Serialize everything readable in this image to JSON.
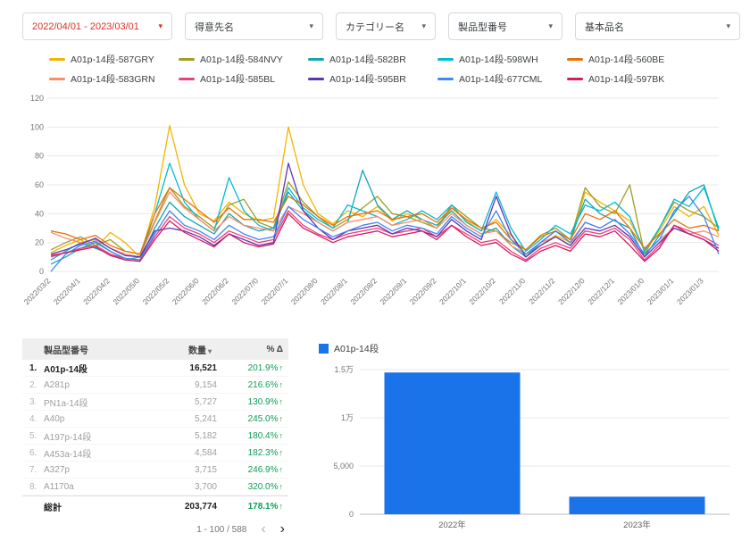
{
  "filters": {
    "date_range": {
      "label": "2022/04/01 - 2023/03/01",
      "color": "#d93025"
    },
    "items": [
      {
        "label": "得意先名"
      },
      {
        "label": "カテゴリー名"
      },
      {
        "label": "製品型番号"
      },
      {
        "label": "基本品名"
      }
    ]
  },
  "icons": {
    "caret_down": "▾",
    "sort_desc": "▾",
    "arrow_up": "↑",
    "chevron_left": "‹",
    "chevron_right": "›"
  },
  "chart_data": [
    {
      "type": "line",
      "title": "",
      "ylim": [
        0,
        120
      ],
      "yticks": [
        0,
        20,
        40,
        60,
        80,
        100,
        120
      ],
      "label_every": 2,
      "x_labels": [
        "2022/03/2",
        "2022/04/1",
        "2022/04/2",
        "2022/05/0",
        "2022/05/2",
        "2022/06/0",
        "2022/06/2",
        "2022/07/0",
        "2022/07/1",
        "2022/08/0",
        "2022/08/1",
        "2022/08/2",
        "2022/09/1",
        "2022/09/2",
        "2022/10/1",
        "2022/10/2",
        "2022/11/0",
        "2022/11/2",
        "2022/12/0",
        "2022/12/1",
        "2023/01/0",
        "2023/01/1",
        "2023/01/3"
      ],
      "series": [
        {
          "name": "A01p-14段-587GRY",
          "color": "#F4B400",
          "values": [
            13,
            18,
            22,
            16,
            27,
            20,
            10,
            45,
            101,
            60,
            40,
            35,
            48,
            40,
            35,
            37,
            100,
            60,
            40,
            33,
            42,
            38,
            45,
            35,
            40,
            36,
            30,
            44,
            35,
            28,
            36,
            25,
            12,
            18,
            25,
            20,
            55,
            48,
            42,
            35,
            15,
            28,
            45,
            38,
            45,
            25
          ]
        },
        {
          "name": "A01p-14段-584NVY",
          "color": "#9E9D24",
          "values": [
            15,
            20,
            24,
            18,
            22,
            14,
            12,
            35,
            58,
            45,
            38,
            30,
            46,
            50,
            34,
            30,
            62,
            48,
            38,
            30,
            36,
            44,
            52,
            40,
            38,
            34,
            30,
            46,
            38,
            30,
            28,
            20,
            15,
            25,
            30,
            22,
            58,
            45,
            40,
            60,
            12,
            30,
            48,
            42,
            38,
            30
          ]
        },
        {
          "name": "A01p-14段-582BR",
          "color": "#12A5B0",
          "values": [
            5,
            10,
            16,
            20,
            14,
            9,
            8,
            30,
            48,
            38,
            32,
            26,
            40,
            32,
            28,
            30,
            55,
            42,
            34,
            28,
            34,
            70,
            46,
            36,
            42,
            36,
            32,
            42,
            32,
            26,
            30,
            18,
            10,
            20,
            28,
            22,
            50,
            40,
            35,
            30,
            10,
            25,
            40,
            55,
            60,
            28
          ]
        },
        {
          "name": "A01p-14段-598WH",
          "color": "#00BCD4",
          "values": [
            8,
            14,
            20,
            16,
            12,
            8,
            10,
            40,
            75,
            48,
            36,
            28,
            65,
            42,
            32,
            28,
            58,
            44,
            36,
            30,
            46,
            42,
            38,
            32,
            36,
            42,
            36,
            46,
            34,
            28,
            55,
            30,
            14,
            22,
            32,
            26,
            46,
            42,
            48,
            38,
            14,
            30,
            50,
            45,
            58,
            30
          ]
        },
        {
          "name": "A01p-14段-560BE",
          "color": "#E8710A",
          "values": [
            28,
            26,
            22,
            25,
            18,
            14,
            12,
            40,
            58,
            50,
            42,
            34,
            44,
            36,
            36,
            34,
            52,
            46,
            38,
            32,
            38,
            40,
            42,
            36,
            38,
            40,
            34,
            44,
            36,
            30,
            34,
            22,
            15,
            24,
            28,
            22,
            40,
            36,
            42,
            30,
            16,
            26,
            36,
            30,
            32,
            28
          ]
        },
        {
          "name": "A01p-14段-583GRN",
          "color": "#FF8A65",
          "values": [
            27,
            23,
            20,
            22,
            16,
            12,
            10,
            34,
            55,
            44,
            36,
            28,
            38,
            32,
            30,
            28,
            45,
            40,
            34,
            28,
            34,
            36,
            38,
            32,
            34,
            36,
            30,
            40,
            32,
            26,
            28,
            18,
            12,
            20,
            24,
            18,
            34,
            30,
            36,
            26,
            12,
            22,
            30,
            26,
            28,
            24
          ]
        },
        {
          "name": "A01p-14段-585BL",
          "color": "#EC407A",
          "values": [
            10,
            13,
            16,
            18,
            12,
            9,
            8,
            24,
            38,
            30,
            26,
            20,
            28,
            24,
            20,
            22,
            42,
            32,
            26,
            22,
            26,
            28,
            30,
            26,
            28,
            30,
            24,
            32,
            26,
            20,
            22,
            14,
            8,
            16,
            20,
            16,
            28,
            26,
            30,
            22,
            8,
            18,
            32,
            28,
            24,
            18
          ]
        },
        {
          "name": "A01p-14段-595BR",
          "color": "#5E35B1",
          "values": [
            12,
            15,
            19,
            23,
            16,
            11,
            10,
            28,
            30,
            28,
            24,
            18,
            26,
            22,
            18,
            20,
            75,
            42,
            30,
            22,
            28,
            30,
            32,
            26,
            30,
            28,
            24,
            36,
            28,
            22,
            52,
            26,
            10,
            18,
            24,
            18,
            30,
            28,
            32,
            24,
            10,
            20,
            30,
            26,
            22,
            16
          ]
        },
        {
          "name": "A01p-14段-677CML",
          "color": "#4285F4",
          "values": [
            0,
            12,
            18,
            21,
            14,
            9,
            8,
            26,
            42,
            32,
            28,
            22,
            32,
            26,
            22,
            24,
            45,
            36,
            30,
            24,
            28,
            32,
            34,
            28,
            32,
            30,
            26,
            38,
            30,
            24,
            42,
            22,
            12,
            20,
            28,
            20,
            34,
            30,
            36,
            26,
            12,
            22,
            42,
            52,
            38,
            12
          ]
        },
        {
          "name": "A01p-14段-597BK",
          "color": "#D81B60",
          "values": [
            11,
            13,
            15,
            17,
            11,
            8,
            7,
            22,
            35,
            27,
            22,
            17,
            26,
            20,
            17,
            19,
            40,
            30,
            25,
            20,
            24,
            26,
            28,
            24,
            26,
            28,
            22,
            32,
            24,
            18,
            20,
            12,
            7,
            14,
            18,
            14,
            26,
            24,
            28,
            18,
            7,
            16,
            32,
            26,
            22,
            14
          ]
        }
      ]
    },
    {
      "type": "bar",
      "legend": "A01p-14段",
      "bar_color": "#1A73E8",
      "categories": [
        "2022年",
        "2023年"
      ],
      "values": [
        14700,
        1821
      ],
      "ylim": [
        0,
        15000
      ],
      "yticks": [
        {
          "v": 0,
          "label": "0"
        },
        {
          "v": 5000,
          "label": "5,000"
        },
        {
          "v": 10000,
          "label": "1万"
        },
        {
          "v": 15000,
          "label": "1.5万"
        }
      ]
    }
  ],
  "table": {
    "col_product": "製品型番号",
    "col_qty": "数量",
    "col_delta": "% Δ",
    "rows": [
      {
        "rank": "1.",
        "name": "A01p-14段",
        "qty": "16,521",
        "delta": "201.9%"
      },
      {
        "rank": "2.",
        "name": "A281p",
        "qty": "9,154",
        "delta": "216.6%"
      },
      {
        "rank": "3.",
        "name": "PN1a-14段",
        "qty": "5,727",
        "delta": "130.9%"
      },
      {
        "rank": "4.",
        "name": "A40p",
        "qty": "5,241",
        "delta": "245.0%"
      },
      {
        "rank": "5.",
        "name": "A197p-14段",
        "qty": "5,182",
        "delta": "180.4%"
      },
      {
        "rank": "6.",
        "name": "A453a-14段",
        "qty": "4,584",
        "delta": "182.3%"
      },
      {
        "rank": "7.",
        "name": "A327p",
        "qty": "3,715",
        "delta": "246.9%"
      },
      {
        "rank": "8.",
        "name": "A1170a",
        "qty": "3,700",
        "delta": "320.0%"
      }
    ],
    "total": {
      "label": "総計",
      "qty": "203,774",
      "delta": "178.1%"
    },
    "pagination": "1 - 100 / 588"
  },
  "colors": {
    "positive": "#0F9D58",
    "accent_red": "#D93025",
    "bar_blue": "#1A73E8"
  }
}
